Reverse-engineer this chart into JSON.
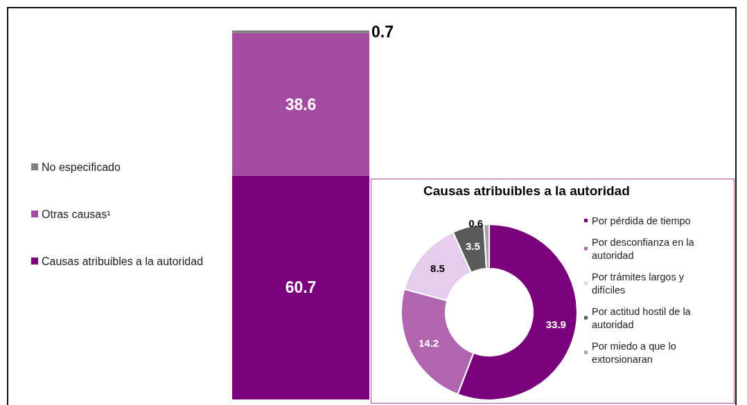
{
  "chart_data": [
    {
      "type": "bar",
      "stacked": true,
      "categories": [
        null
      ],
      "data_labels": true,
      "legend": "left",
      "series": [
        {
          "name": "Causas atribuibles a la autoridad",
          "color": "#7b007b",
          "values": [
            60.7
          ]
        },
        {
          "name": "Otras causas¹",
          "color": "#a24ba0",
          "values": [
            38.6
          ]
        },
        {
          "name": "No especificado",
          "color": "#808080",
          "values": [
            0.7
          ]
        }
      ]
    },
    {
      "type": "donut",
      "title": "Causas atribuibles a la autoridad",
      "data_labels": true,
      "legend": "right",
      "categories": [
        "Por pérdida de tiempo",
        "Por desconfianza en la autoridad",
        "Por trámites largos y difíciles",
        "Por actitud hostil de la autoridad",
        "Por miedo a que lo extorsionaran"
      ],
      "values": [
        33.9,
        14.2,
        8.5,
        3.5,
        0.6
      ],
      "colors": [
        "#7b007b",
        "#b065b0",
        "#e6cdee",
        "#5a5a5a",
        "#a6a6a6"
      ]
    }
  ]
}
